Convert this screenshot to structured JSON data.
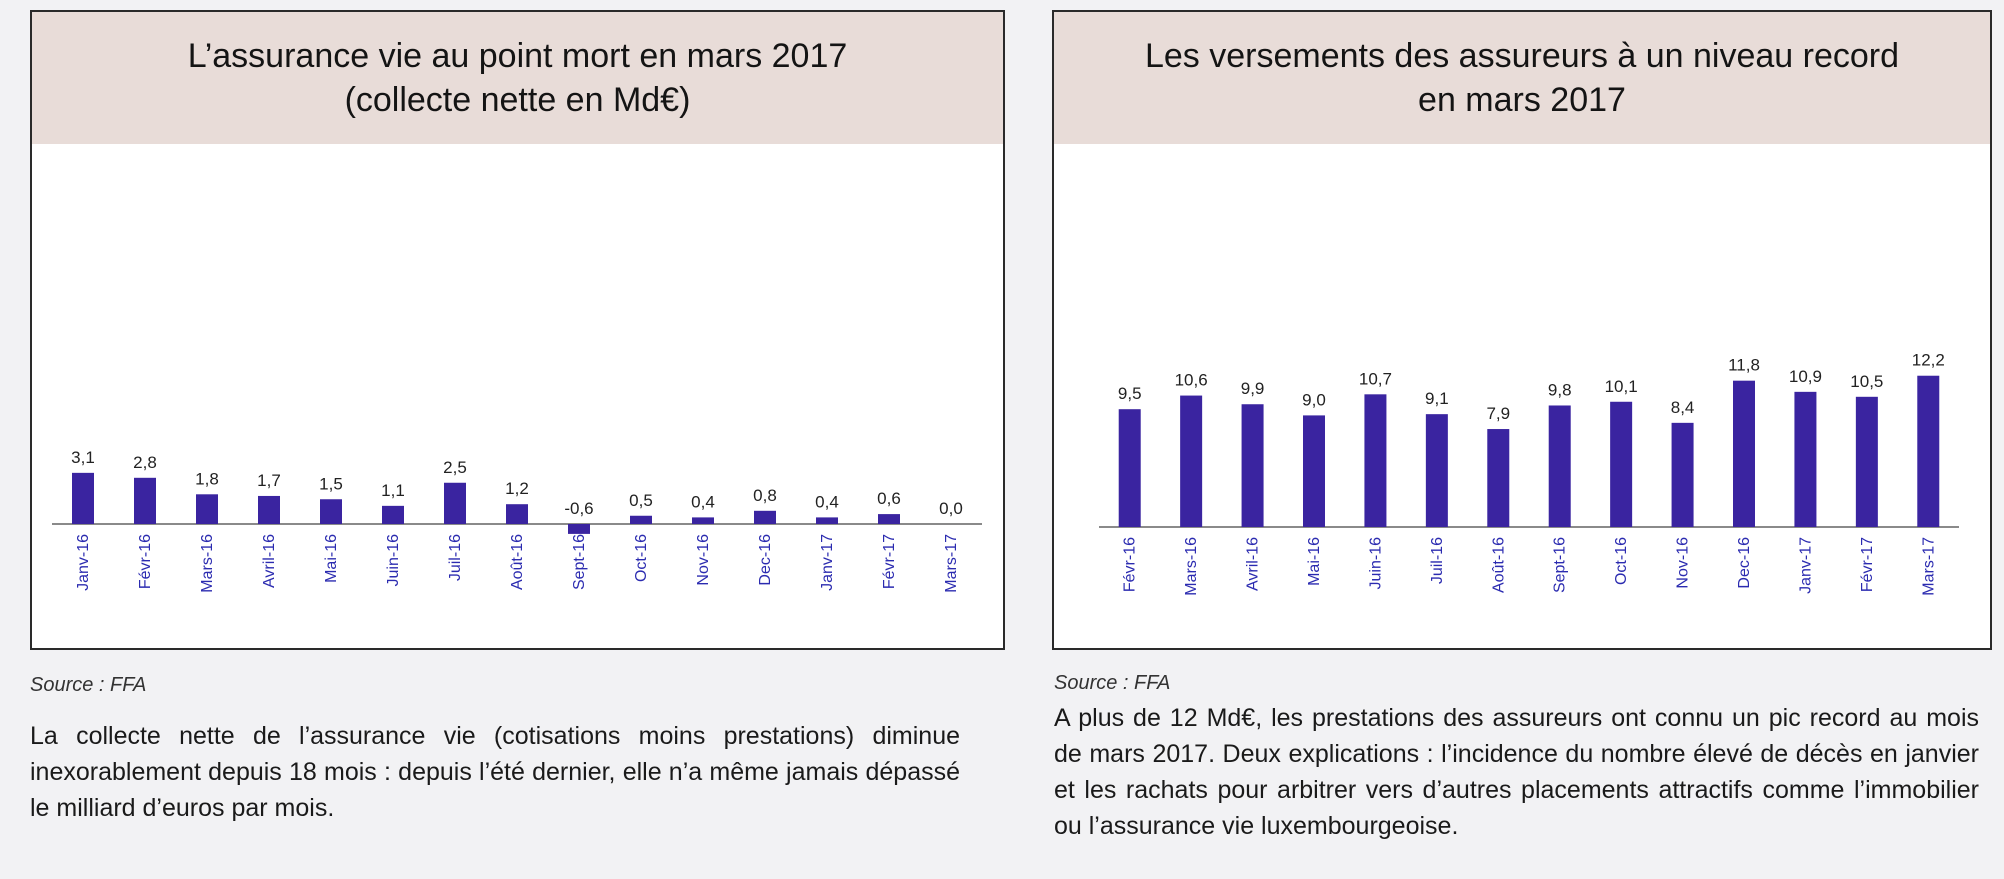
{
  "charts": [
    {
      "title": "L’assurance vie au point mort en mars 2017\n(collecte nette en Md€)",
      "source": "Source : FFA",
      "caption": "La collecte nette de l’assurance vie (cotisations moins prestations) diminue inexorablement depuis 18 mois : depuis l’été dernier, elle n’a même jamais dépassé le milliard d’euros par mois."
    },
    {
      "title": "Les versements des assureurs à un niveau record\nen mars 2017",
      "source": "Source : FFA",
      "caption": "A plus de 12 Md€, les prestations des assureurs ont connu un pic record au mois de mars 2017. Deux explications : l’incidence du nombre élevé de décès en janvier et les rachats pour arbitrer vers d’autres placements attractifs comme l’immobilier ou l’assurance vie luxembourgeoise."
    }
  ],
  "chart_data": [
    {
      "type": "bar",
      "title": "L’assurance vie au point mort en mars 2017 (collecte nette en Md€)",
      "categories": [
        "Janv-16",
        "Févr-16",
        "Mars-16",
        "Avril-16",
        "Mai-16",
        "Juin-16",
        "Juil-16",
        "Août-16",
        "Sept-16",
        "Oct-16",
        "Nov-16",
        "Dec-16",
        "Janv-17",
        "Févr-17",
        "Mars-17"
      ],
      "values": [
        3.1,
        2.8,
        1.8,
        1.7,
        1.5,
        1.1,
        2.5,
        1.2,
        -0.6,
        0.5,
        0.4,
        0.8,
        0.4,
        0.6,
        0.0
      ],
      "data_labels": [
        "3,1",
        "2,8",
        "1,8",
        "1,7",
        "1,5",
        "1,1",
        "2,5",
        "1,2",
        "-0,6",
        "0,5",
        "0,4",
        "0,8",
        "0,4",
        "0,6",
        "0,0"
      ],
      "color": "#3a24a0",
      "xlabel": "",
      "ylabel": "",
      "ylim": [
        -0.8,
        14
      ]
    },
    {
      "type": "bar",
      "title": "Les versements des assureurs à un niveau record en mars 2017",
      "categories": [
        "Févr-16",
        "Mars-16",
        "Avril-16",
        "Mai-16",
        "Juin-16",
        "Juil-16",
        "Août-16",
        "Sept-16",
        "Oct-16",
        "Nov-16",
        "Dec-16",
        "Janv-17",
        "Févr-17",
        "Mars-17"
      ],
      "values": [
        9.5,
        10.6,
        9.9,
        9.0,
        10.7,
        9.1,
        7.9,
        9.8,
        10.1,
        8.4,
        11.8,
        10.9,
        10.5,
        12.2
      ],
      "data_labels": [
        "9,5",
        "10,6",
        "9,9",
        "9,0",
        "10,7",
        "9,1",
        "7,9",
        "9,8",
        "10,1",
        "8,4",
        "11,8",
        "10,9",
        "10,5",
        "12,2"
      ],
      "color": "#3a24a0",
      "xlabel": "",
      "ylabel": "",
      "ylim": [
        0,
        14
      ]
    }
  ]
}
